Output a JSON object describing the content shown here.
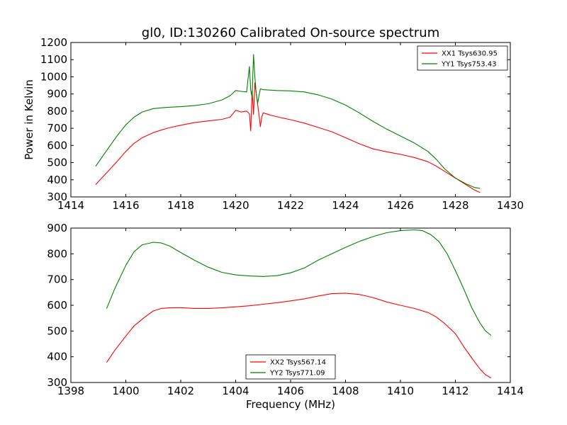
{
  "figure": {
    "title": "gl0, ID:130260 Calibrated On-source spectrum",
    "bottom_xlabel": "Frequency (MHz)"
  },
  "chart_data": [
    {
      "type": "line",
      "title": "gl0, ID:130260 Calibrated On-source spectrum",
      "xlabel": "",
      "ylabel": "Power in Kelvin",
      "xlim": [
        1414,
        1430
      ],
      "ylim": [
        300,
        1200
      ],
      "xticks": [
        1414,
        1416,
        1418,
        1420,
        1422,
        1424,
        1426,
        1428,
        1430
      ],
      "yticks": [
        300,
        400,
        500,
        600,
        700,
        800,
        900,
        1000,
        1100,
        1200
      ],
      "grid": false,
      "legend_position": "top-right",
      "series": [
        {
          "name": "XX1 Tsys630.95",
          "color": "#ff0000",
          "x": [
            1414.9,
            1415.3,
            1415.7,
            1416.0,
            1416.3,
            1416.6,
            1417.0,
            1417.5,
            1418.0,
            1418.5,
            1419.0,
            1419.5,
            1419.8,
            1420.0,
            1420.2,
            1420.4,
            1420.5,
            1420.55,
            1420.6,
            1420.65,
            1420.7,
            1420.75,
            1420.8,
            1420.85,
            1420.9,
            1420.95,
            1421.0,
            1421.3,
            1421.7,
            1422.0,
            1422.5,
            1423.0,
            1423.5,
            1424.0,
            1424.5,
            1425.0,
            1425.5,
            1426.0,
            1426.5,
            1427.0,
            1427.3,
            1427.6,
            1428.0,
            1428.4,
            1428.7,
            1428.9
          ],
          "values": [
            372,
            440,
            510,
            565,
            612,
            645,
            675,
            700,
            718,
            733,
            743,
            752,
            765,
            805,
            795,
            800,
            785,
            685,
            920,
            780,
            965,
            900,
            840,
            780,
            710,
            765,
            790,
            775,
            760,
            750,
            730,
            705,
            680,
            645,
            610,
            580,
            563,
            548,
            530,
            505,
            480,
            450,
            410,
            370,
            340,
            325
          ]
        },
        {
          "name": "YY1 Tsys753.43",
          "color": "#008000",
          "x": [
            1414.9,
            1415.3,
            1415.7,
            1416.0,
            1416.3,
            1416.6,
            1417.0,
            1417.5,
            1418.0,
            1418.5,
            1419.0,
            1419.5,
            1419.8,
            1420.0,
            1420.2,
            1420.4,
            1420.5,
            1420.55,
            1420.6,
            1420.65,
            1420.7,
            1420.75,
            1420.8,
            1420.85,
            1420.9,
            1421.0,
            1421.5,
            1422.0,
            1422.5,
            1423.0,
            1423.5,
            1424.0,
            1424.5,
            1425.0,
            1425.5,
            1426.0,
            1426.5,
            1427.0,
            1427.3,
            1427.6,
            1428.0,
            1428.4,
            1428.7,
            1428.9
          ],
          "values": [
            478,
            570,
            660,
            720,
            765,
            795,
            815,
            822,
            826,
            832,
            843,
            865,
            890,
            920,
            915,
            912,
            1060,
            920,
            880,
            1130,
            1000,
            900,
            845,
            890,
            930,
            925,
            920,
            918,
            912,
            895,
            870,
            835,
            790,
            740,
            695,
            655,
            615,
            565,
            520,
            465,
            410,
            375,
            355,
            350
          ]
        }
      ]
    },
    {
      "type": "line",
      "title": "",
      "xlabel": "Frequency (MHz)",
      "ylabel": "",
      "xlim": [
        1398,
        1414
      ],
      "ylim": [
        300,
        900
      ],
      "xticks": [
        1398,
        1400,
        1402,
        1404,
        1406,
        1408,
        1410,
        1412,
        1414
      ],
      "yticks": [
        300,
        400,
        500,
        600,
        700,
        800,
        900
      ],
      "grid": false,
      "legend_position": "bottom-center",
      "series": [
        {
          "name": "XX2 Tsys567.14",
          "color": "#ff0000",
          "x": [
            1399.3,
            1399.6,
            1400.0,
            1400.3,
            1400.7,
            1401.0,
            1401.3,
            1401.6,
            1402.0,
            1402.5,
            1403.0,
            1403.5,
            1404.0,
            1404.5,
            1405.0,
            1405.5,
            1406.0,
            1406.5,
            1407.0,
            1407.5,
            1408.0,
            1408.5,
            1409.0,
            1409.5,
            1410.0,
            1410.5,
            1411.0,
            1411.3,
            1411.6,
            1412.0,
            1412.3,
            1412.6,
            1412.9,
            1413.1,
            1413.3
          ],
          "values": [
            378,
            425,
            480,
            520,
            555,
            578,
            588,
            590,
            591,
            588,
            588,
            590,
            594,
            598,
            604,
            610,
            617,
            625,
            636,
            645,
            647,
            642,
            630,
            613,
            600,
            588,
            572,
            555,
            530,
            490,
            440,
            395,
            352,
            330,
            318
          ]
        },
        {
          "name": "YY2 Tsys771.09",
          "color": "#008000",
          "x": [
            1399.3,
            1399.6,
            1400.0,
            1400.3,
            1400.6,
            1401.0,
            1401.3,
            1401.6,
            1402.0,
            1402.5,
            1403.0,
            1403.5,
            1404.0,
            1404.5,
            1405.0,
            1405.5,
            1406.0,
            1406.5,
            1407.0,
            1407.5,
            1408.0,
            1408.5,
            1409.0,
            1409.5,
            1410.0,
            1410.5,
            1410.8,
            1411.1,
            1411.4,
            1411.7,
            1412.0,
            1412.3,
            1412.6,
            1412.9,
            1413.1,
            1413.3
          ],
          "values": [
            587,
            665,
            755,
            808,
            835,
            845,
            842,
            830,
            805,
            775,
            748,
            728,
            718,
            714,
            712,
            715,
            726,
            745,
            775,
            800,
            825,
            848,
            867,
            882,
            890,
            893,
            890,
            875,
            848,
            800,
            735,
            665,
            590,
            530,
            500,
            483
          ]
        }
      ]
    }
  ]
}
